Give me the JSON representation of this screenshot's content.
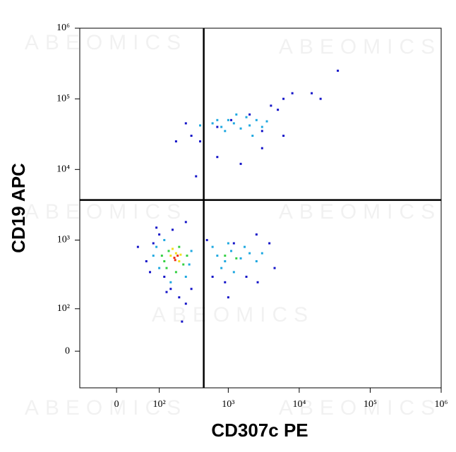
{
  "chart_data": {
    "type": "scatter",
    "scale": "biexponential",
    "x_label": "CD307c PE",
    "y_label": "CD19 APC",
    "watermark": "ABEOMICS",
    "xlim": [
      -80,
      1000000
    ],
    "ylim": [
      -80,
      1000000
    ],
    "xticks": [
      0,
      {
        "value": 100,
        "label": "10²"
      },
      {
        "value": 1000,
        "label": "10³"
      },
      {
        "value": 10000,
        "label": "10⁴"
      },
      {
        "value": 100000,
        "label": "10⁵"
      },
      {
        "value": 1000000,
        "label": "10⁶"
      }
    ],
    "yticks": [
      0,
      {
        "value": 100,
        "label": "10²"
      },
      {
        "value": 1000,
        "label": "10³"
      },
      {
        "value": 10000,
        "label": "10⁴"
      },
      {
        "value": 100000,
        "label": "10⁵"
      },
      {
        "value": 1000000,
        "label": "10⁶"
      }
    ],
    "quadrant": {
      "x": 450,
      "y": 3700
    },
    "series": [
      {
        "color": "#1414c8",
        "x": [
          60,
          90,
          120,
          250,
          300,
          2000,
          4000,
          6000,
          8000,
          20000,
          35000,
          300,
          700,
          1500,
          3000,
          5000,
          80,
          150,
          200,
          600,
          900,
          1200,
          2500,
          4500,
          350,
          180,
          700,
          1100,
          6000,
          15000,
          100,
          3000,
          40,
          220,
          1000,
          250,
          500,
          1800,
          400,
          130,
          70,
          2600,
          3800,
          250,
          160
        ],
        "values": [
          500,
          1500,
          300,
          120,
          200,
          60000,
          80000,
          100000,
          120000,
          100000,
          250000,
          30000,
          15000,
          12000,
          20000,
          70000,
          900,
          200,
          150,
          300,
          250,
          900,
          1200,
          400,
          8000,
          25000,
          40000,
          50000,
          30000,
          120000,
          1200,
          35000,
          800,
          60,
          150,
          45000,
          1000,
          300,
          25000,
          180,
          350,
          250,
          900,
          1800,
          1400
        ]
      },
      {
        "color": "#1ea8e0",
        "x": [
          800,
          1000,
          1200,
          1500,
          2000,
          2500,
          3000,
          600,
          900,
          1800,
          2200,
          1300,
          700,
          3500,
          400,
          700,
          900,
          1100,
          1500,
          2000,
          800,
          1200,
          1700,
          2500,
          1000,
          600,
          3000,
          80,
          100,
          300,
          250,
          120,
          90,
          280,
          150
        ],
        "values": [
          40000,
          50000,
          45000,
          38000,
          42000,
          50000,
          40000,
          45000,
          35000,
          55000,
          30000,
          60000,
          50000,
          48000,
          42000,
          600,
          500,
          700,
          550,
          650,
          400,
          350,
          800,
          500,
          900,
          800,
          650,
          600,
          400,
          700,
          300,
          1000,
          800,
          450,
          250
        ]
      },
      {
        "color": "#32d040",
        "x": [
          120,
          140,
          200,
          230,
          110,
          260,
          180,
          130,
          900,
          1300
        ],
        "values": [
          500,
          700,
          800,
          450,
          600,
          600,
          350,
          400,
          600,
          550
        ]
      },
      {
        "color": "#f0e020",
        "x": [
          150,
          180,
          200,
          160,
          210
        ],
        "values": [
          600,
          650,
          500,
          750,
          620
        ]
      },
      {
        "color": "#f03010",
        "x": [
          170,
          190,
          175
        ],
        "values": [
          560,
          600,
          520
        ]
      }
    ]
  }
}
